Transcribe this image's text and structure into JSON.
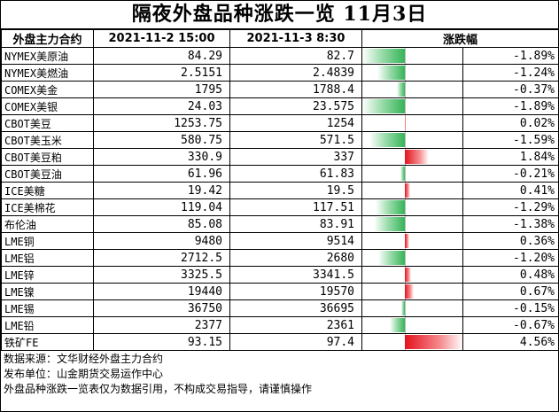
{
  "title": "隔夜外盘品种涨跌一览 11月3日",
  "headers": {
    "name": "外盘主力合约",
    "prev": "2021-11-2 15:00",
    "curr": "2021-11-3 8:30",
    "change": "涨跌幅"
  },
  "rows": [
    {
      "name": "NYMEX美原油",
      "prev": "84.29",
      "curr": "82.7",
      "pct": "-1.89%",
      "value": -1.89
    },
    {
      "name": "NYMEX美燃油",
      "prev": "2.5151",
      "curr": "2.4839",
      "pct": "-1.24%",
      "value": -1.24
    },
    {
      "name": "COMEX美金",
      "prev": "1795",
      "curr": "1788.4",
      "pct": "-0.37%",
      "value": -0.37
    },
    {
      "name": "COMEX美银",
      "prev": "24.03",
      "curr": "23.575",
      "pct": "-1.89%",
      "value": -1.89
    },
    {
      "name": "CBOT美豆",
      "prev": "1253.75",
      "curr": "1254",
      "pct": "0.02%",
      "value": 0.02
    },
    {
      "name": "CBOT美玉米",
      "prev": "580.75",
      "curr": "571.5",
      "pct": "-1.59%",
      "value": -1.59
    },
    {
      "name": "CBOT美豆粕",
      "prev": "330.9",
      "curr": "337",
      "pct": "1.84%",
      "value": 1.84
    },
    {
      "name": "CBOT美豆油",
      "prev": "61.96",
      "curr": "61.83",
      "pct": "-0.21%",
      "value": -0.21
    },
    {
      "name": "ICE美糖",
      "prev": "19.42",
      "curr": "19.5",
      "pct": "0.41%",
      "value": 0.41
    },
    {
      "name": "ICE美棉花",
      "prev": "119.04",
      "curr": "117.51",
      "pct": "-1.29%",
      "value": -1.29
    },
    {
      "name": "布伦油",
      "prev": "85.08",
      "curr": "83.91",
      "pct": "-1.38%",
      "value": -1.38
    },
    {
      "name": "LME铜",
      "prev": "9480",
      "curr": "9514",
      "pct": "0.36%",
      "value": 0.36
    },
    {
      "name": "LME铝",
      "prev": "2712.5",
      "curr": "2680",
      "pct": "-1.20%",
      "value": -1.2
    },
    {
      "name": "LME锌",
      "prev": "3325.5",
      "curr": "3341.5",
      "pct": "0.48%",
      "value": 0.48
    },
    {
      "name": "LME镍",
      "prev": "19440",
      "curr": "19570",
      "pct": "0.67%",
      "value": 0.67
    },
    {
      "name": "LME锡",
      "prev": "36750",
      "curr": "36695",
      "pct": "-0.15%",
      "value": -0.15
    },
    {
      "name": "LME铅",
      "prev": "2377",
      "curr": "2361",
      "pct": "-0.67%",
      "value": -0.67
    },
    {
      "name": "铁矿FE",
      "prev": "93.15",
      "curr": "97.4",
      "pct": "4.56%",
      "value": 4.56
    }
  ],
  "footer": [
    "数据来源：文华财经外盘主力合约",
    "发布单位：山金期货交易运作中心",
    "外盘品种涨跌一览表仅为数据引用，不构成交易指导，请谨慎操作"
  ],
  "colors": {
    "negative": "#35b457",
    "positive": "#e4121e"
  }
}
